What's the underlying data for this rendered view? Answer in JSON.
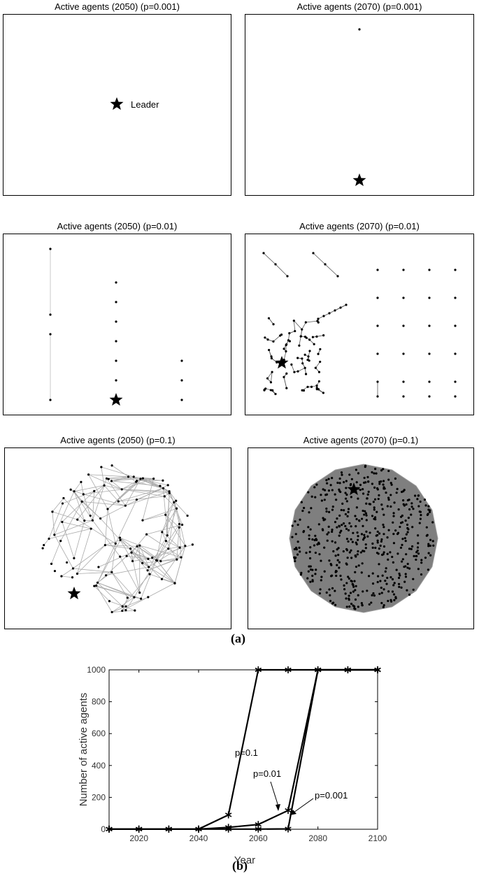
{
  "chart_data": [
    {
      "type": "scatter",
      "title": "Active agents (2050) (p=0.001)",
      "annotation": "Leader"
    },
    {
      "type": "scatter",
      "title": "Active agents (2070) (p=0.001)"
    },
    {
      "type": "scatter",
      "title": "Active agents (2050) (p=0.01)"
    },
    {
      "type": "scatter",
      "title": "Active agents (2070) (p=0.01)"
    },
    {
      "type": "scatter",
      "title": "Active agents (2050) (p=0.1)"
    },
    {
      "type": "scatter",
      "title": "Active agents (2070) (p=0.1)"
    },
    {
      "type": "line",
      "xlabel": "Year",
      "ylabel": "Number of active agents",
      "xlim": [
        2010,
        2100
      ],
      "ylim": [
        0,
        1000
      ],
      "xticks": [
        2020,
        2040,
        2060,
        2080,
        2100
      ],
      "yticks": [
        0,
        200,
        400,
        600,
        800,
        1000
      ],
      "grid": false,
      "series": [
        {
          "name": "p=0.1",
          "x": [
            2010,
            2020,
            2030,
            2040,
            2050,
            2060,
            2070,
            2080,
            2090,
            2100
          ],
          "values": [
            1,
            1,
            1,
            1,
            90,
            1000,
            1000,
            1000,
            1000,
            1000
          ]
        },
        {
          "name": "p=0.01",
          "x": [
            2010,
            2020,
            2030,
            2040,
            2050,
            2060,
            2070,
            2080,
            2090,
            2100
          ],
          "values": [
            1,
            1,
            1,
            1,
            12,
            30,
            118,
            1000,
            1000,
            1000
          ]
        },
        {
          "name": "p=0.001",
          "x": [
            2010,
            2020,
            2030,
            2040,
            2050,
            2060,
            2070,
            2080,
            2090,
            2100
          ],
          "values": [
            1,
            1,
            1,
            1,
            1,
            1,
            2,
            1000,
            1000,
            1000
          ]
        }
      ]
    }
  ],
  "captions": {
    "a": "(a)",
    "b": "(b)"
  }
}
